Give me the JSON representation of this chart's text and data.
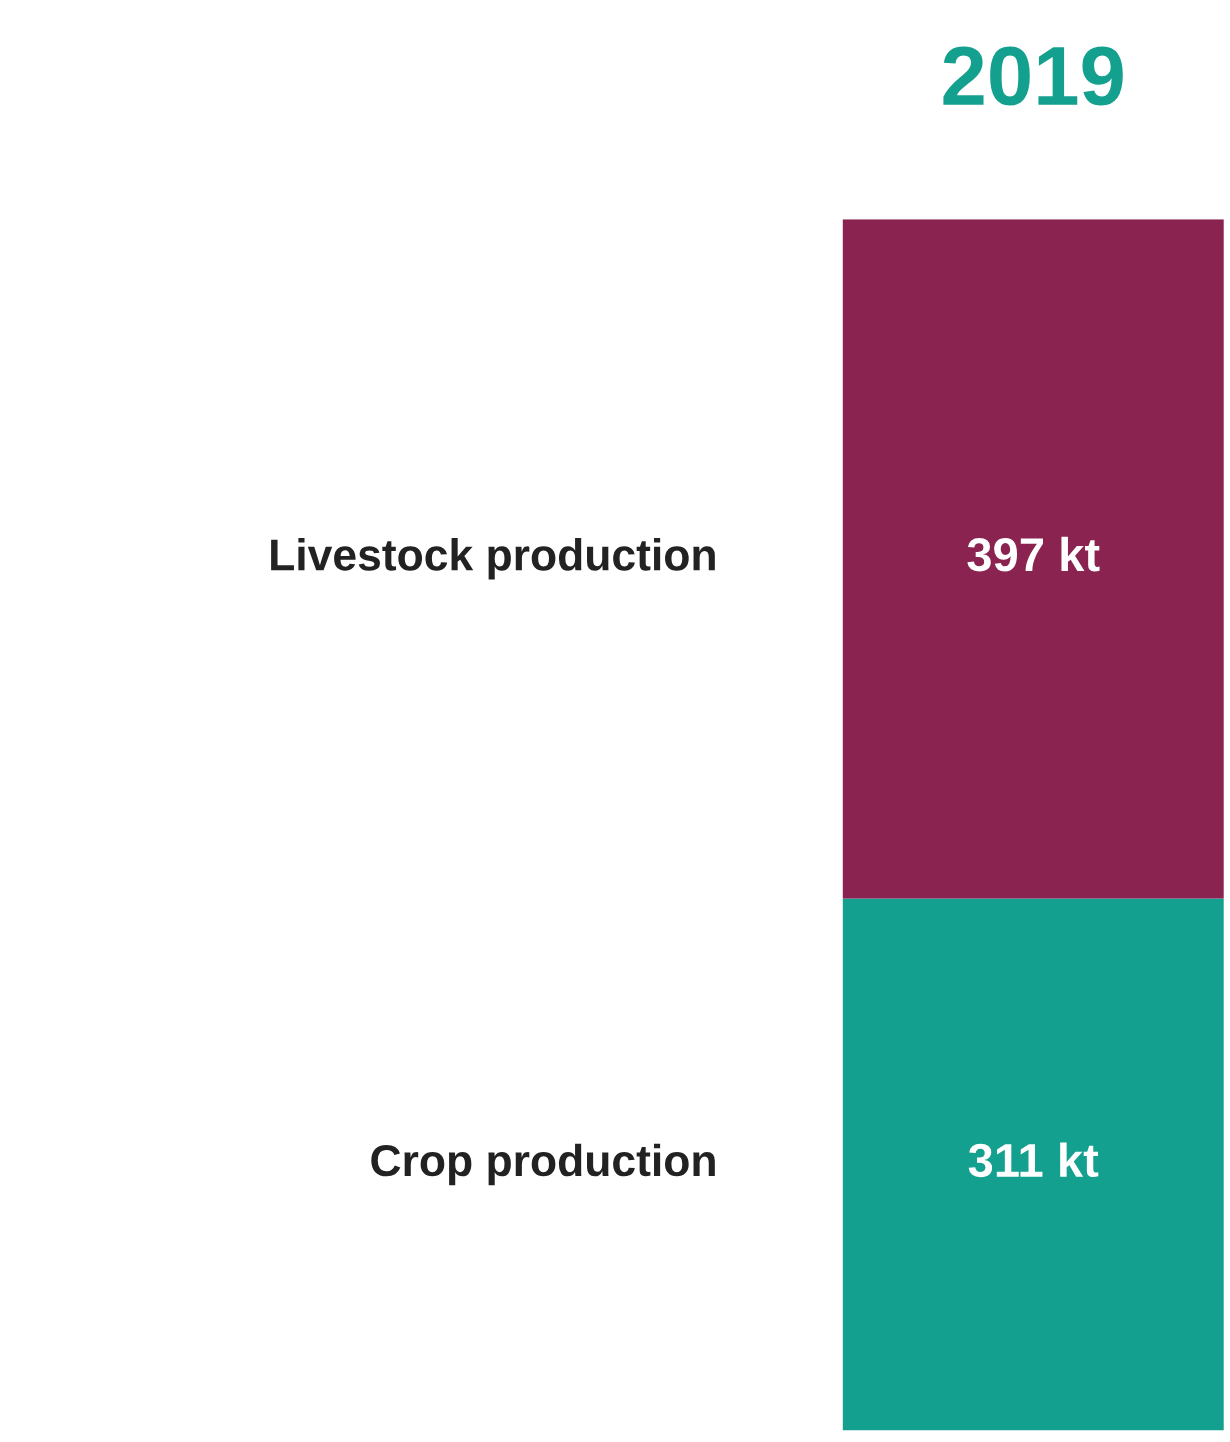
{
  "chart_data": {
    "type": "bar",
    "stacked": true,
    "categories": [
      "2019"
    ],
    "series": [
      {
        "name": "Crop production",
        "color": "#14a08f",
        "values": [
          311
        ],
        "value_labels": [
          "311 kt"
        ]
      },
      {
        "name": "Livestock production",
        "color": "#8a2350",
        "values": [
          397
        ],
        "value_labels": [
          "397 kt"
        ]
      }
    ]
  }
}
